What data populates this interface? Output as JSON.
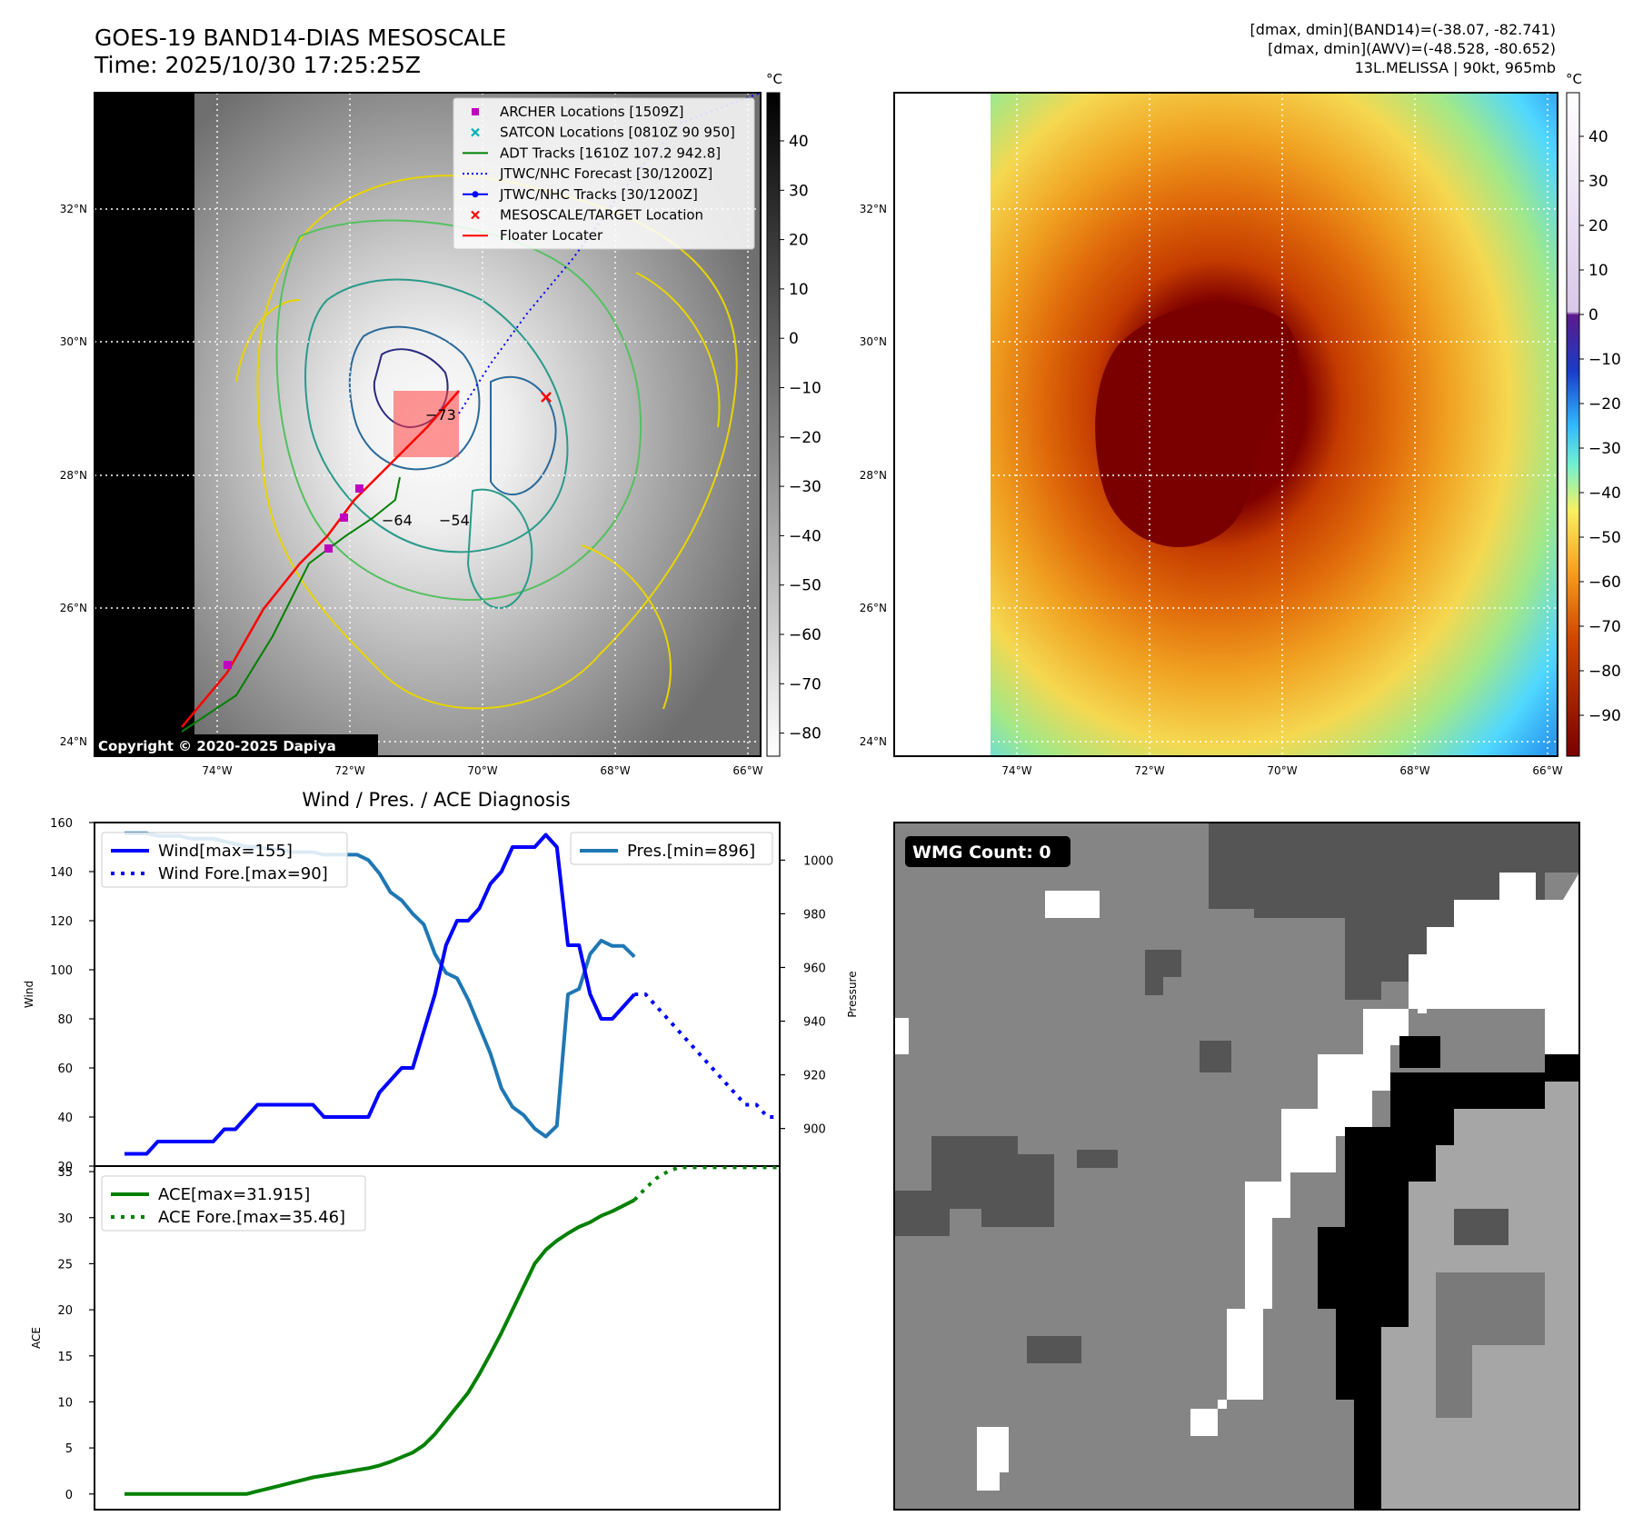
{
  "header": {
    "title": "GOES-19 BAND14-DIAS MESOSCALE",
    "time": "Time: 2025/10/30 17:25:25Z",
    "stats1": "[dmax, dmin](BAND14)=(-38.07, -82.741)",
    "stats2": "[dmax, dmin](AWV)=(-48.528, -80.652)",
    "storm": "13L.MELISSA | 90kt, 965mb"
  },
  "map_axes": {
    "lat_labels": [
      "32°N",
      "30°N",
      "28°N",
      "26°N",
      "24°N"
    ],
    "lon_labels": [
      "74°W",
      "72°W",
      "70°W",
      "68°W",
      "66°W"
    ]
  },
  "ir_panel": {
    "copyright": "Copyright © 2020-2025 Dapiya",
    "colorbar_unit": "°C",
    "colorbar_ticks": [
      "40",
      "30",
      "20",
      "10",
      "0",
      "−10",
      "−20",
      "−30",
      "−40",
      "−50",
      "−60",
      "−70",
      "−80"
    ],
    "contour_labels": [
      "−64",
      "−54",
      "−73"
    ],
    "legend": [
      {
        "label": "ARCHER Locations [1509Z]",
        "color": "#c000c0",
        "marker": "square"
      },
      {
        "label": "SATCON Locations [0810Z 90 950]",
        "color": "#00b0b0",
        "marker": "x"
      },
      {
        "label": "ADT Tracks [1610Z 107.2 942.8]",
        "color": "#008000",
        "marker": "line"
      },
      {
        "label": "JTWC/NHC Forecast [30/1200Z]",
        "color": "#0000ff",
        "marker": "dotted"
      },
      {
        "label": "JTWC/NHC Tracks [30/1200Z]",
        "color": "#0000ff",
        "marker": "line-dot"
      },
      {
        "label": "MESOSCALE/TARGET Location",
        "color": "#ff0000",
        "marker": "x"
      },
      {
        "label": "Floater Locater",
        "color": "#ff0000",
        "marker": "line"
      }
    ]
  },
  "awv_panel": {
    "colorbar_unit": "°C",
    "colorbar_ticks": [
      "40",
      "30",
      "20",
      "10",
      "0",
      "−10",
      "−20",
      "−30",
      "−40",
      "−50",
      "−60",
      "−70",
      "−80",
      "−90"
    ]
  },
  "wmg_panel": {
    "badge": "WMG Count: 0"
  },
  "chart_data": [
    {
      "type": "line",
      "title": "Wind / Pres. / ACE Diagnosis",
      "ylabel": "Wind",
      "ylabel_right": "Pressure",
      "ylim": [
        20,
        160
      ],
      "ylim_right": [
        886,
        1014
      ],
      "yticks": [
        20,
        40,
        60,
        80,
        100,
        120,
        140,
        160
      ],
      "yticks_right": [
        900,
        920,
        940,
        960,
        980,
        1000
      ],
      "series": [
        {
          "name": "Wind[max=155]",
          "color": "#0000ff",
          "style": "solid",
          "values": [
            25,
            25,
            25,
            30,
            30,
            30,
            30,
            30,
            30,
            35,
            35,
            40,
            45,
            45,
            45,
            45,
            45,
            45,
            40,
            40,
            40,
            40,
            40,
            50,
            55,
            60,
            60,
            75,
            90,
            110,
            120,
            120,
            125,
            135,
            140,
            150,
            150,
            150,
            155,
            150,
            110,
            110,
            90,
            80,
            80,
            85,
            90
          ]
        },
        {
          "name": "Wind Fore.[max=90]",
          "color": "#0000ff",
          "style": "dotted",
          "values": [
            90,
            90,
            85,
            80,
            75,
            70,
            65,
            60,
            55,
            50,
            45,
            45,
            40,
            40,
            40,
            38
          ]
        },
        {
          "name": "Pres.[min=896]",
          "color": "#1f77b4",
          "style": "solid",
          "values": [
            1010,
            1010,
            1010,
            1009,
            1009,
            1009,
            1008,
            1008,
            1008,
            1007,
            1006,
            1005,
            1005,
            1004,
            1004,
            1003,
            1003,
            1003,
            1002,
            1002,
            1002,
            1002,
            1000,
            995,
            988,
            985,
            980,
            976,
            965,
            958,
            956,
            948,
            938,
            928,
            915,
            908,
            905,
            900,
            897,
            901,
            950,
            952,
            965,
            970,
            968,
            968,
            964
          ]
        }
      ]
    },
    {
      "type": "line",
      "ylabel": "ACE",
      "ylim": [
        -1.7,
        35.6
      ],
      "yticks": [
        0,
        5,
        10,
        15,
        20,
        25,
        30,
        35
      ],
      "series": [
        {
          "name": "ACE[max=31.915]",
          "color": "#008000",
          "style": "solid",
          "values": [
            0,
            0,
            0,
            0,
            0,
            0,
            0,
            0,
            0,
            0,
            0,
            0,
            0.3,
            0.6,
            0.9,
            1.2,
            1.5,
            1.8,
            2.0,
            2.2,
            2.4,
            2.6,
            2.8,
            3.1,
            3.5,
            4.0,
            4.5,
            5.3,
            6.5,
            8.0,
            9.5,
            11.0,
            13.0,
            15.2,
            17.5,
            20.0,
            22.5,
            25.0,
            26.5,
            27.5,
            28.3,
            29.0,
            29.5,
            30.2,
            30.7,
            31.3,
            31.915
          ]
        },
        {
          "name": "ACE Fore.[max=35.46]",
          "color": "#008000",
          "style": "dotted",
          "values": [
            31.915,
            33.2,
            34.3,
            35.0,
            35.46,
            35.46,
            35.46,
            35.46,
            35.46,
            35.46,
            35.46,
            35.46,
            35.46,
            35.46,
            35.46,
            35.46
          ]
        }
      ]
    }
  ]
}
